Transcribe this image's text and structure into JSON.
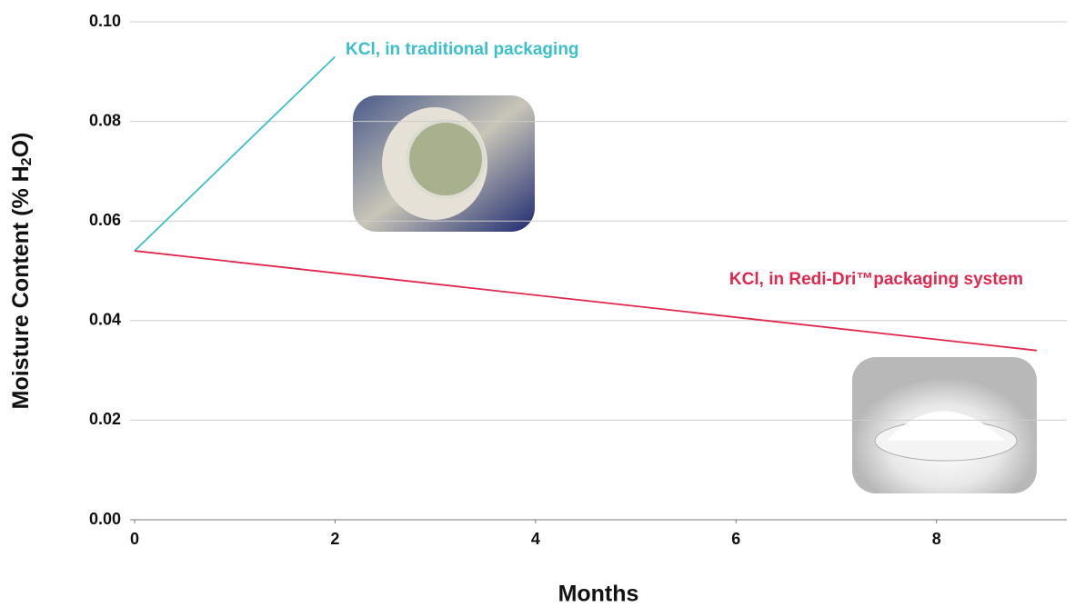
{
  "chart_data": {
    "type": "line",
    "x_label": "Months",
    "y_label": {
      "text": "Moisture Content (% H",
      "subscript": "2",
      "suffix": "O)"
    },
    "series": [
      {
        "name": "KCl, in traditional packaging",
        "color": "#3bbfcb",
        "x": [
          0,
          2
        ],
        "values": [
          0.054,
          0.093
        ]
      },
      {
        "name": "KCl, in Redi-Dri™packaging system",
        "color": "#e0284f",
        "x": [
          0,
          9
        ],
        "values": [
          0.054,
          0.034
        ]
      }
    ],
    "xlim": [
      0,
      9.3
    ],
    "xticks": [
      0,
      2,
      4,
      6,
      8
    ],
    "ylim": [
      0,
      0.1
    ],
    "yticks": [
      {
        "value": 0,
        "label": "0.00"
      },
      {
        "value": 0.02,
        "label": "0.02"
      },
      {
        "value": 0.04,
        "label": "0.04"
      },
      {
        "value": 0.06,
        "label": "0.06"
      },
      {
        "value": 0.08,
        "label": "0.08"
      },
      {
        "value": 0.1,
        "label": "0.10"
      }
    ],
    "grid": true
  }
}
